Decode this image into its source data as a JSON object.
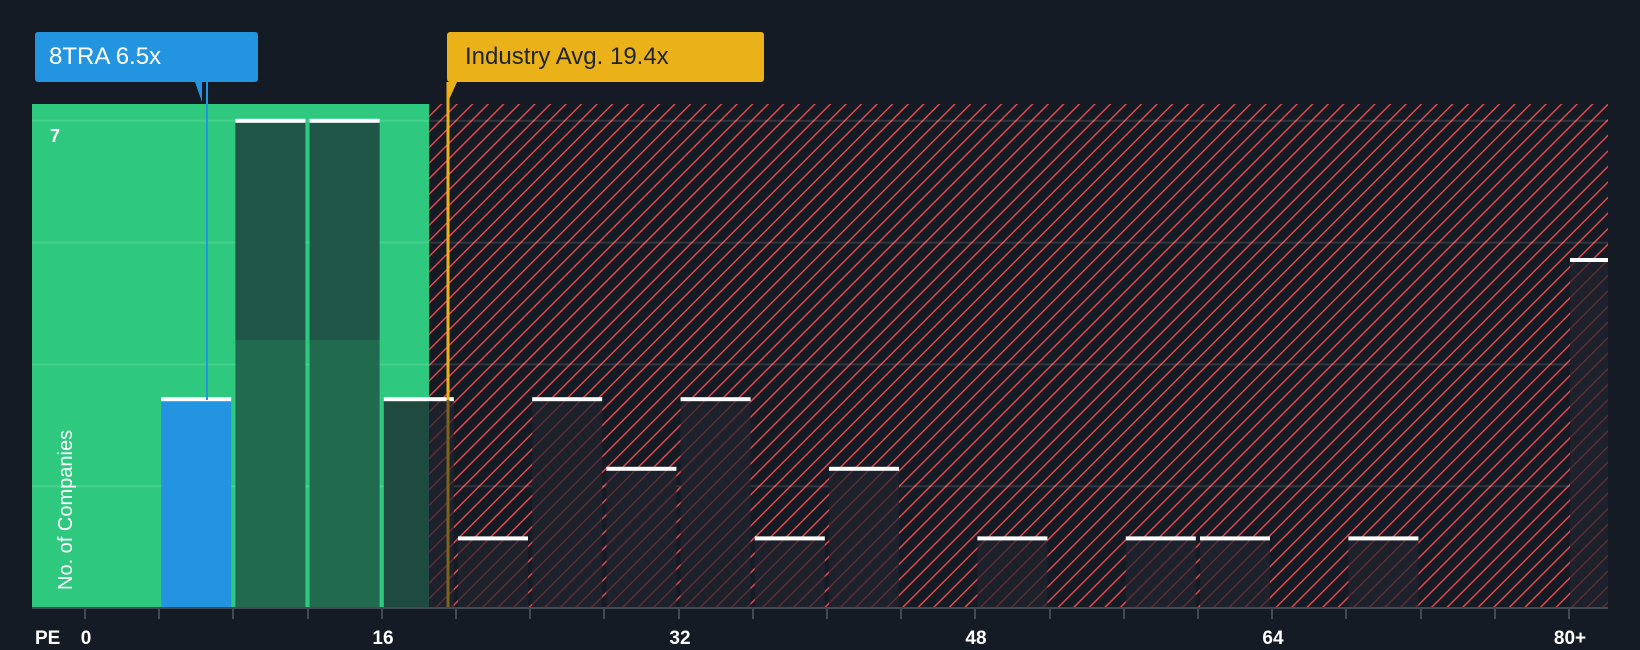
{
  "callouts": {
    "company": "8TRA 6.5x",
    "industry": "Industry Avg. 19.4x"
  },
  "axis": {
    "x_title": "PE",
    "y_title": "No. of Companies",
    "y_top_label": "7",
    "x_ticks": [
      "0",
      "16",
      "32",
      "48",
      "64",
      "80+"
    ]
  },
  "colors": {
    "background": "#151b24",
    "undervalued_green": "#2ec97e",
    "company_blue": "#2394e0",
    "industry_yellow": "#ebb118",
    "hatch_red": "#e0474c",
    "bar_dark_green": "#216a50",
    "bar_dark": "#1f2430"
  },
  "chart_data": {
    "type": "bar",
    "title": "",
    "xlabel": "PE",
    "ylabel": "No. of Companies",
    "categories": [
      "4-8",
      "8-12",
      "12-16",
      "16-20",
      "20-24",
      "24-28",
      "28-32",
      "32-36",
      "36-40",
      "40-44",
      "44-48",
      "48-52",
      "52-56",
      "56-60",
      "60-64",
      "64-68",
      "68-72",
      "72-76",
      "76-80",
      "80+"
    ],
    "values": [
      3,
      7,
      7,
      3,
      1,
      3,
      2,
      3,
      1,
      2,
      0,
      1,
      0,
      1,
      1,
      0,
      1,
      0,
      0,
      5
    ],
    "bin_starts": [
      4,
      8,
      12,
      16,
      20,
      24,
      28,
      32,
      36,
      40,
      44,
      48,
      52,
      56,
      60,
      64,
      68,
      72,
      76,
      80
    ],
    "highlight_bin_index": 0,
    "company": {
      "name": "8TRA",
      "pe": 6.5
    },
    "industry_average_pe": 19.4,
    "x_tick_labels": [
      "0",
      "16",
      "32",
      "48",
      "64",
      "80+"
    ],
    "x_tick_values": [
      0,
      16,
      32,
      48,
      64,
      80
    ],
    "xlim": [
      0,
      82
    ],
    "ylim": [
      0,
      7.25
    ],
    "y_gridlines": [
      1.75,
      3.5,
      5.25,
      7
    ],
    "y_tick_labels": [
      "7"
    ],
    "shaded_regions": [
      {
        "from": 0,
        "to": 18.5,
        "style": "green-solid",
        "meaning": "below industry"
      },
      {
        "from": 18.5,
        "to": 82,
        "style": "red-hatched",
        "meaning": "above industry"
      }
    ],
    "grid": true,
    "legend": null
  }
}
